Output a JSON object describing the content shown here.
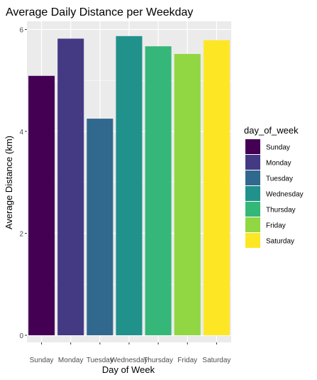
{
  "chart_data": {
    "type": "bar",
    "title": "Average Daily Distance per Weekday",
    "xlabel": "Day of Week",
    "ylabel": "Average Distance (km)",
    "categories": [
      "Sunday",
      "Monday",
      "Tuesday",
      "Wednesday",
      "Thursday",
      "Friday",
      "Saturday"
    ],
    "values": [
      5.09,
      5.82,
      4.25,
      5.87,
      5.67,
      5.52,
      5.79
    ],
    "colors": [
      "#440154",
      "#443983",
      "#31688e",
      "#21918c",
      "#35b779",
      "#90d743",
      "#fde725"
    ],
    "ylim": [
      0,
      6.1
    ],
    "yticks": [
      0,
      2,
      4,
      6
    ],
    "grid": true,
    "panel_background": "#ebebeb",
    "legend": {
      "title": "day_of_week",
      "placement": "right",
      "entries": [
        "Sunday",
        "Monday",
        "Tuesday",
        "Wednesday",
        "Thursday",
        "Friday",
        "Saturday"
      ]
    }
  }
}
